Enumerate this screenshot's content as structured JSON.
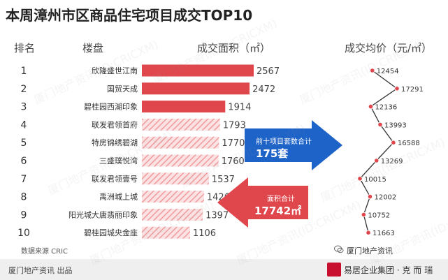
{
  "title": "本周漳州市区商品住宅项目成交TOP10",
  "headers": {
    "rank": "排名",
    "name": "楼盘",
    "area": "成交面积（㎡）",
    "price": "成交均价（元/㎡）"
  },
  "callouts": {
    "units_label": "前十项目套数合计",
    "units_value": "175套",
    "area_label": "面积合计",
    "area_value": "17742㎡"
  },
  "source": "数据来源 CRIC",
  "footer": {
    "left": "厦门地产资讯  出品",
    "wechat": "厦门地产资讯",
    "brand": "易居企业集团 · 克 而 瑞"
  },
  "watermark": "厦门地产资讯(ID:CRICXM)",
  "colors": {
    "bar": "#e0474c",
    "bar_hatch": "#f3a9ab",
    "arrow_blue": "#1e63c8",
    "arrow_red": "#e0474c",
    "line": "#333333"
  },
  "chart_data": {
    "type": "bar",
    "categories": [
      "欣隆盛世江南",
      "国贸天成",
      "碧桂园西湖印象",
      "联发君领首府",
      "特房锦绣碧湖",
      "三盛璞悦湾",
      "联发君领壹号",
      "禹洲城上城",
      "阳光城大唐翡丽印象",
      "碧桂园城央金座"
    ],
    "ranks": [
      "1",
      "2",
      "3",
      "4",
      "5",
      "6",
      "7",
      "8",
      "9",
      "10"
    ],
    "series": [
      {
        "name": "成交面积（㎡）",
        "values": [
          2567,
          2472,
          1914,
          1793,
          1770,
          1760,
          1537,
          1426,
          1397,
          1106
        ]
      },
      {
        "name": "成交均价（元/㎡）",
        "values": [
          12454,
          17291,
          12136,
          13993,
          16588,
          13269,
          10015,
          12002,
          10752,
          11663
        ]
      }
    ]
  }
}
